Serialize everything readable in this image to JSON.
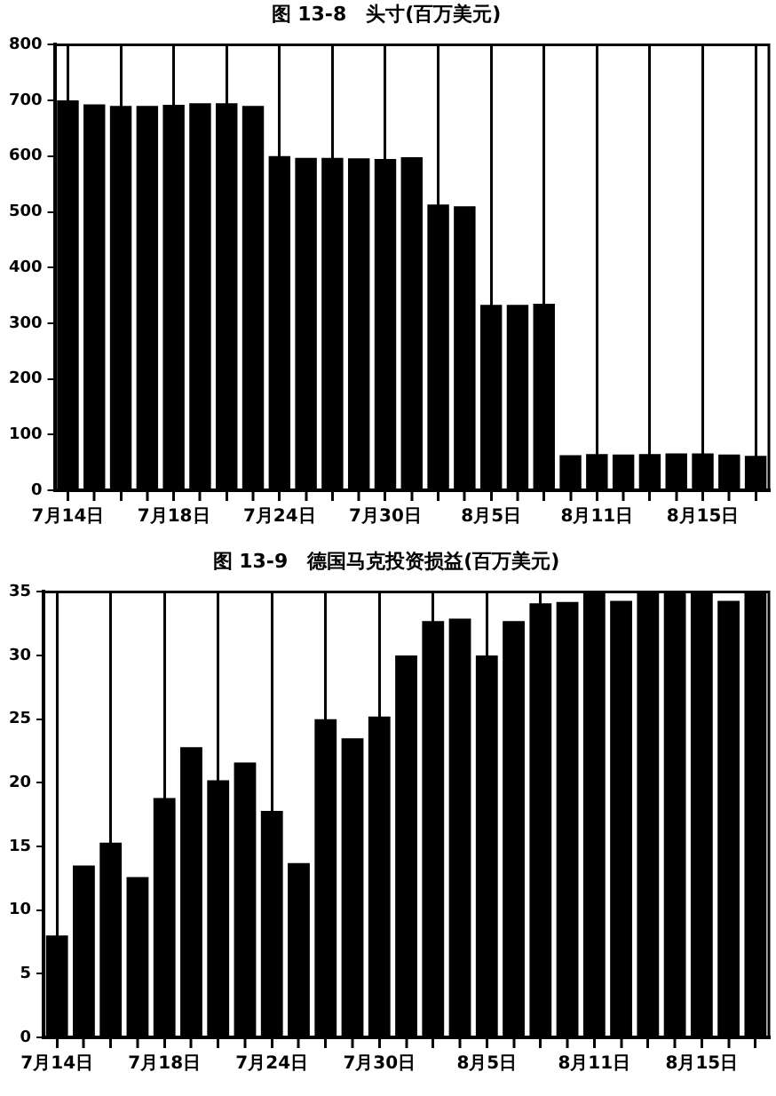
{
  "chart_data": [
    {
      "type": "bar",
      "title": "图 13-8　头寸(百万美元)",
      "categories": [
        "7月14日",
        null,
        null,
        null,
        "7月18日",
        null,
        null,
        null,
        "7月24日",
        null,
        null,
        null,
        "7月30日",
        null,
        null,
        null,
        "8月5日",
        null,
        null,
        null,
        "8月11日",
        null,
        null,
        null,
        "8月15日",
        null,
        null
      ],
      "values": [
        700,
        693,
        690,
        690,
        692,
        695,
        695,
        690,
        600,
        597,
        597,
        596,
        595,
        598,
        513,
        510,
        333,
        333,
        335,
        63,
        65,
        64,
        65,
        66,
        66,
        64,
        62
      ],
      "color": "#000000",
      "ylim": [
        0,
        800
      ],
      "yticks": [
        0,
        100,
        200,
        300,
        400,
        500,
        600,
        700,
        800
      ],
      "grid": "x",
      "legend": false
    },
    {
      "type": "bar",
      "title": "图 13-9　德国马克投资损益(百万美元)",
      "categories": [
        "7月14日",
        null,
        null,
        null,
        "7月18日",
        null,
        null,
        null,
        "7月24日",
        null,
        null,
        null,
        "7月30日",
        null,
        null,
        null,
        "8月5日",
        null,
        null,
        null,
        "8月11日",
        null,
        null,
        null,
        "8月15日",
        null,
        null
      ],
      "values": [
        8,
        13.5,
        15.3,
        12.6,
        18.8,
        22.8,
        20.2,
        21.6,
        17.8,
        13.7,
        25,
        23.5,
        25.2,
        30,
        32.7,
        32.9,
        30,
        32.7,
        34.1,
        34.2,
        35,
        34.3,
        35,
        35,
        35,
        34.3,
        35
      ],
      "color": "#000000",
      "ylim": [
        0,
        35
      ],
      "yticks": [
        0,
        5,
        10,
        15,
        20,
        25,
        30,
        35
      ],
      "grid": "x",
      "legend": false
    }
  ]
}
